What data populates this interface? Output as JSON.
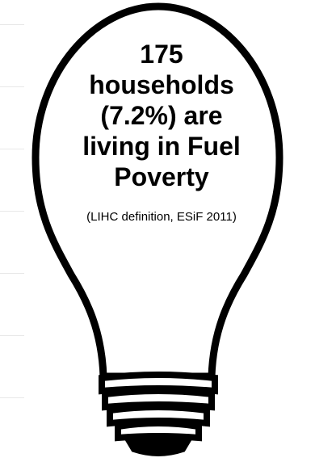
{
  "infographic": {
    "headline_lines": [
      "175",
      "households",
      "(7.2%) are",
      "living in Fuel",
      "Poverty"
    ],
    "footnote": "(LIHC definition, ESiF 2011)",
    "colors": {
      "outline": "#000000",
      "fill": "#ffffff",
      "text": "#000000"
    },
    "icon": "lightbulb-icon"
  }
}
